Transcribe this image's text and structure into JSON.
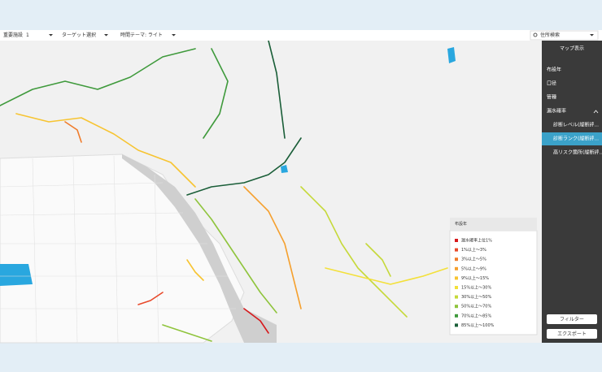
{
  "toolbar": {
    "filters": [
      {
        "label": "重要施設",
        "badge": "1"
      },
      {
        "label": "ターゲット選択"
      },
      {
        "label": "時間テーマ: ライト"
      }
    ],
    "search": "住所検索"
  },
  "sidebar": {
    "title": "マップ表示",
    "items": [
      "布設年",
      "口径",
      "管種",
      "漏水確率"
    ],
    "sub_items": [
      "診断レベル(縦断評...",
      "診断ランク(縦断評...",
      "高リスク箇所(縦断評..."
    ],
    "selected_sub_item": 1,
    "buttons": [
      "フィルター",
      "エクスポート"
    ]
  },
  "legend": {
    "title": "布設年",
    "items": [
      {
        "label": "漏水確率上位1%",
        "color": "#d7191c"
      },
      {
        "label": "1%以上〜3%",
        "color": "#e8492a"
      },
      {
        "label": "3%以上〜5%",
        "color": "#f07c2b"
      },
      {
        "label": "5%以上〜9%",
        "color": "#f5a02e"
      },
      {
        "label": "9%以上〜15%",
        "color": "#f7c431"
      },
      {
        "label": "15%以上〜30%",
        "color": "#f3e03a"
      },
      {
        "label": "30%以上〜50%",
        "color": "#c6d93a"
      },
      {
        "label": "50%以上〜70%",
        "color": "#8fc43c"
      },
      {
        "label": "70%以上〜85%",
        "color": "#3f9a3c"
      },
      {
        "label": "85%以上〜100%",
        "color": "#1a5e38"
      }
    ]
  }
}
